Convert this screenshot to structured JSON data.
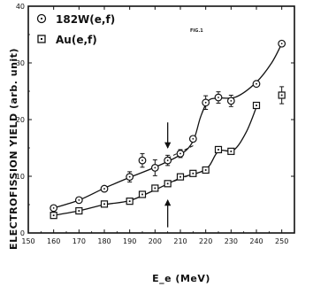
{
  "chart_data": {
    "type": "scatter",
    "title": "",
    "xlabel": "E_e (MeV)",
    "ylabel": "ELECTROFISSION YIELD (arb. unit)",
    "xlim": [
      150,
      255
    ],
    "ylim": [
      0,
      40
    ],
    "x_ticks": [
      150,
      160,
      170,
      180,
      190,
      200,
      210,
      220,
      230,
      240,
      250
    ],
    "y_ticks": [
      0,
      10,
      20,
      30,
      40
    ],
    "annotation": "FIG.1",
    "series": [
      {
        "name": "182W(e,f)",
        "marker": "circle-dot",
        "points": [
          {
            "x": 160,
            "y": 4.4,
            "err": 0
          },
          {
            "x": 170,
            "y": 5.8,
            "err": 0
          },
          {
            "x": 180,
            "y": 7.8,
            "err": 0
          },
          {
            "x": 190,
            "y": 9.9,
            "err": 0.9
          },
          {
            "x": 195,
            "y": 12.8,
            "err": 1.2
          },
          {
            "x": 200,
            "y": 11.5,
            "err": 1.4
          },
          {
            "x": 205,
            "y": 12.8,
            "err": 0.9
          },
          {
            "x": 210,
            "y": 14.0,
            "err": 0.7
          },
          {
            "x": 215,
            "y": 16.6,
            "err": 0
          },
          {
            "x": 220,
            "y": 23.0,
            "err": 1.2
          },
          {
            "x": 225,
            "y": 23.9,
            "err": 1.0
          },
          {
            "x": 230,
            "y": 23.3,
            "err": 1.0
          },
          {
            "x": 240,
            "y": 26.3,
            "err": 0
          },
          {
            "x": 250,
            "y": 33.4,
            "err": 0
          }
        ],
        "curve": [
          [
            160,
            4.4
          ],
          [
            170,
            5.8
          ],
          [
            180,
            7.9
          ],
          [
            190,
            9.8
          ],
          [
            200,
            11.6
          ],
          [
            210,
            13.8
          ],
          [
            215,
            16.2
          ],
          [
            218,
            20.5
          ],
          [
            221,
            23.3
          ],
          [
            225,
            23.8
          ],
          [
            232,
            24.0
          ],
          [
            240,
            26.6
          ],
          [
            246,
            30.0
          ],
          [
            250,
            33.4
          ]
        ]
      },
      {
        "name": "Au(e,f)",
        "marker": "square-dot",
        "points": [
          {
            "x": 160,
            "y": 3.1,
            "err": 0
          },
          {
            "x": 170,
            "y": 3.9,
            "err": 0
          },
          {
            "x": 180,
            "y": 5.1,
            "err": 0
          },
          {
            "x": 190,
            "y": 5.6,
            "err": 0
          },
          {
            "x": 195,
            "y": 6.8,
            "err": 0
          },
          {
            "x": 200,
            "y": 7.9,
            "err": 0
          },
          {
            "x": 205,
            "y": 8.7,
            "err": 0
          },
          {
            "x": 210,
            "y": 9.9,
            "err": 0
          },
          {
            "x": 215,
            "y": 10.5,
            "err": 0
          },
          {
            "x": 220,
            "y": 11.1,
            "err": 0
          },
          {
            "x": 225,
            "y": 14.7,
            "err": 0
          },
          {
            "x": 230,
            "y": 14.4,
            "err": 0
          },
          {
            "x": 240,
            "y": 22.5,
            "err": 0
          },
          {
            "x": 250,
            "y": 24.3,
            "err": 1.5
          }
        ],
        "curve": [
          [
            160,
            3.1
          ],
          [
            170,
            3.9
          ],
          [
            180,
            5.0
          ],
          [
            190,
            5.7
          ],
          [
            200,
            7.6
          ],
          [
            210,
            9.7
          ],
          [
            220,
            11.2
          ],
          [
            225,
            14.4
          ],
          [
            231,
            14.6
          ],
          [
            236,
            17.8
          ],
          [
            240,
            22.2
          ]
        ]
      }
    ],
    "dashed_extrapolations": [
      [
        [
          205,
          13.2
        ],
        [
          216,
          15.6
        ]
      ],
      [
        [
          205,
          8.7
        ],
        [
          216,
          10.6
        ]
      ]
    ],
    "arrows": [
      {
        "x": 205,
        "from_y": 19.5,
        "to_y": 15.0,
        "direction": "down"
      },
      {
        "x": 205,
        "from_y": 1.0,
        "to_y": 5.8,
        "direction": "up"
      }
    ]
  }
}
